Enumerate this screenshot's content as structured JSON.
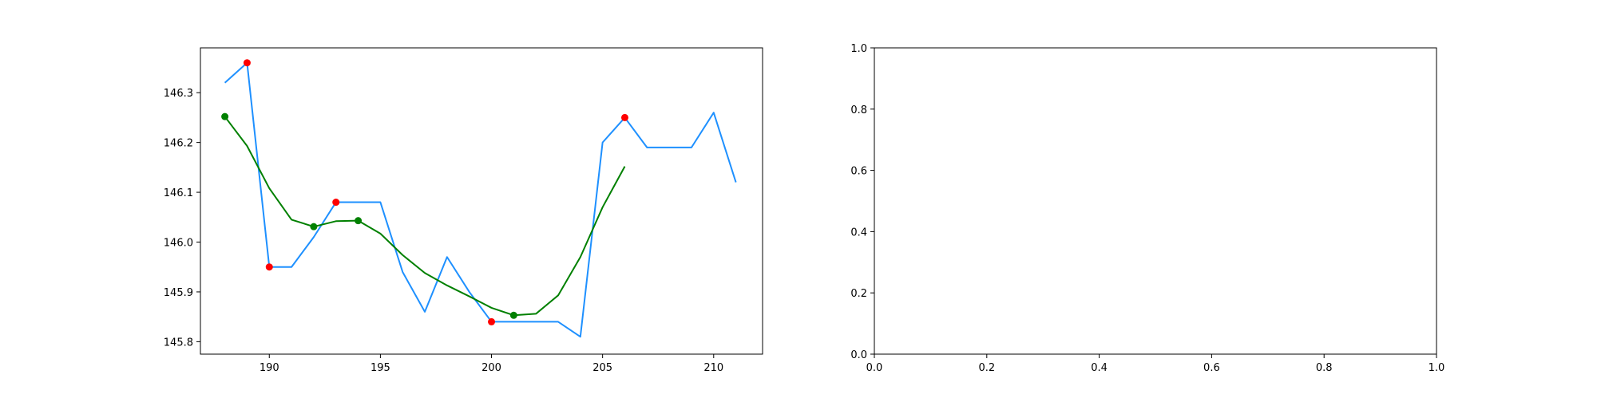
{
  "chart_data": [
    {
      "type": "line",
      "title": "",
      "xlabel": "",
      "ylabel": "",
      "xlim": [
        186.9,
        212.2
      ],
      "ylim": [
        145.775,
        146.39
      ],
      "x_ticks": [
        190,
        195,
        200,
        205,
        210
      ],
      "y_ticks": [
        145.8,
        145.9,
        146.0,
        146.1,
        146.2,
        146.3
      ],
      "y_tick_decimals": 1,
      "series": [
        {
          "kind": "line",
          "color": "#1e90ff",
          "x": [
            188,
            189,
            190,
            191,
            192,
            193,
            194,
            195,
            196,
            197,
            198,
            199,
            200,
            201,
            202,
            203,
            204,
            205,
            206,
            207,
            208,
            209,
            210,
            211
          ],
          "values": [
            146.32,
            146.36,
            145.95,
            145.95,
            146.01,
            146.08,
            146.08,
            146.08,
            145.94,
            145.86,
            145.97,
            145.9,
            145.84,
            145.84,
            145.84,
            145.84,
            145.81,
            146.2,
            146.25,
            146.19,
            146.19,
            146.19,
            146.26,
            146.12
          ]
        },
        {
          "kind": "line",
          "color": "#008000",
          "x": [
            188,
            189,
            190,
            191,
            192,
            193,
            194,
            195,
            196,
            197,
            198,
            199,
            200,
            201,
            202,
            203,
            204,
            205,
            206
          ],
          "values": [
            146.252,
            146.193,
            146.108,
            146.045,
            146.031,
            146.042,
            146.043,
            146.017,
            145.974,
            145.938,
            145.913,
            145.891,
            145.868,
            145.853,
            145.856,
            145.893,
            145.97,
            146.07,
            146.152
          ]
        },
        {
          "kind": "scatter",
          "color": "#ff0000",
          "x": [
            189,
            190,
            193,
            200,
            206
          ],
          "values": [
            146.36,
            145.95,
            146.08,
            145.84,
            146.25
          ]
        },
        {
          "kind": "scatter",
          "color": "#008000",
          "x": [
            188,
            192,
            194,
            201
          ],
          "values": [
            146.252,
            146.031,
            146.043,
            145.853
          ]
        }
      ]
    },
    {
      "type": "line",
      "title": "",
      "xlabel": "",
      "ylabel": "",
      "xlim": [
        0,
        1
      ],
      "ylim": [
        0,
        1
      ],
      "x_ticks": [
        0.0,
        0.2,
        0.4,
        0.6,
        0.8,
        1.0
      ],
      "y_ticks": [
        0.0,
        0.2,
        0.4,
        0.6,
        0.8,
        1.0
      ],
      "y_tick_decimals": 1,
      "x_tick_decimals": 1,
      "series": []
    }
  ]
}
